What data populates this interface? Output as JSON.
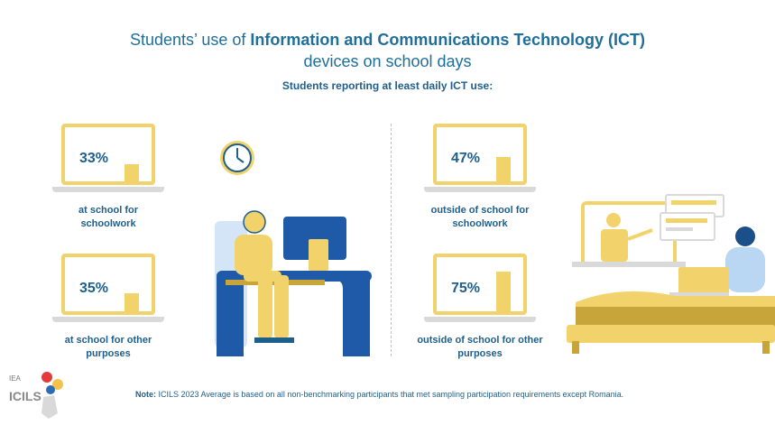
{
  "title": {
    "prefix": "Students’ use of ",
    "bold": "Information and Communications Technology (ICT)",
    "line2": "devices on school days"
  },
  "subtitle": "Students reporting at least daily ICT use:",
  "stats": [
    {
      "value": 33,
      "label": "33%",
      "caption_l1": "at school for",
      "caption_l2": "schoolwork"
    },
    {
      "value": 35,
      "label": "35%",
      "caption_l1": "at school for other",
      "caption_l2": "purposes"
    },
    {
      "value": 47,
      "label": "47%",
      "caption_l1": "outside of school for",
      "caption_l2": "schoolwork"
    },
    {
      "value": 75,
      "label": "75%",
      "caption_l1": "outside of school for other",
      "caption_l2": "purposes"
    }
  ],
  "note": {
    "bold": "Note:",
    "text": " ICILS 2023 Average is based on all non-benchmarking participants that met sampling participation requirements except Romania."
  },
  "logo": {
    "iea": "IEA",
    "icils": "ICILS"
  },
  "colors": {
    "blue": "#1f5f8c",
    "yellow": "#f2d36b",
    "dark_blue": "#1e5aa8",
    "grey": "#d9d9d9"
  }
}
